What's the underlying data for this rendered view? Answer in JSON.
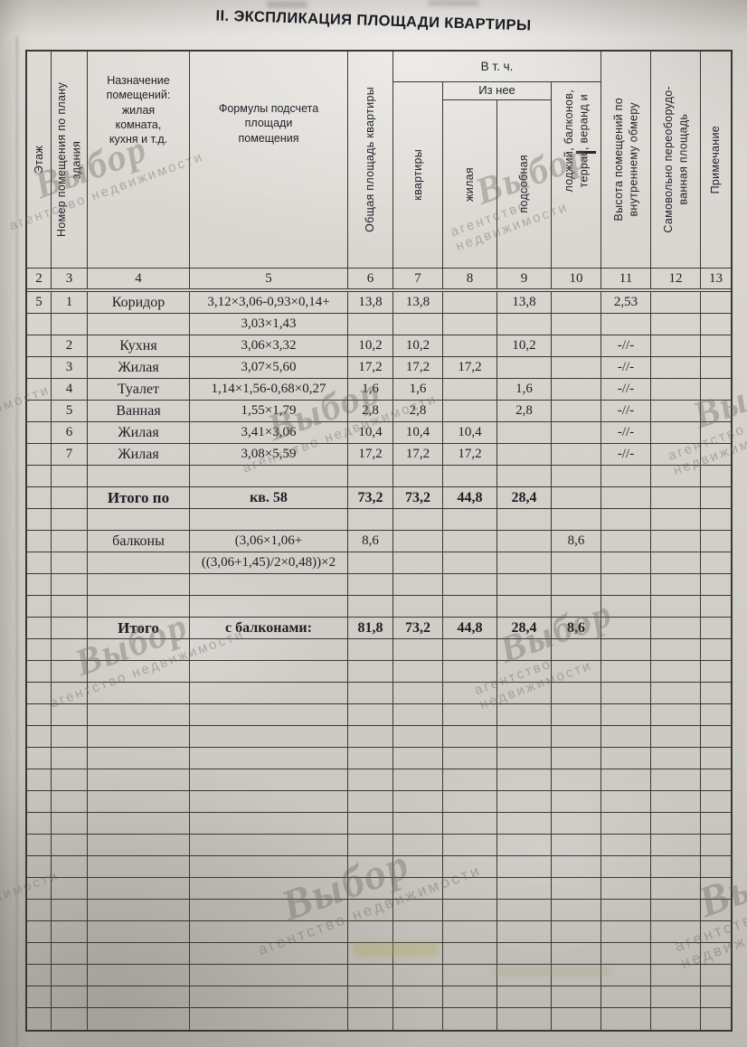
{
  "title": "II. ЭКСПЛИКАЦИЯ ПЛОЩАДИ КВАРТИРЫ",
  "watermark": {
    "brand": "Выбор",
    "agency": "агентство недвижимости"
  },
  "table": {
    "headers": {
      "floor": "Этаж",
      "room_number": "Номер помещения по плану\nздания",
      "purpose": "Назначение\nпомещений:\nжилая\nкомната,\nкухня и т.д.",
      "formulas": "Формулы подсчета\nплощади\nпомещения",
      "total_area": "Общая площадь квартиры",
      "including": "В т. ч.",
      "apartment": "квартиры",
      "of_it": "Из нее",
      "living": "жилая",
      "auxiliary": "подсобная",
      "balconies": "лоджий, балконов,\nтеррас, веранд и",
      "height": "Высота помещений по\nвнутреннему обмеру",
      "reequipped": "Самовольно переоборудо-\nванная площадь",
      "note": "Примечание"
    },
    "column_numbers": [
      "2",
      "3",
      "4",
      "5",
      "6",
      "7",
      "8",
      "9",
      "10",
      "11",
      "12",
      "13"
    ],
    "body": {
      "row_count": 34,
      "rows": [
        {
          "i": 0,
          "cells": [
            "5",
            "1",
            "Коридор",
            "3,12×3,06-0,93×0,14+",
            "13,8",
            "13,8",
            "",
            "13,8",
            "",
            "2,53",
            "",
            ""
          ]
        },
        {
          "i": 1,
          "cells": [
            "",
            "",
            "",
            "3,03×1,43",
            "",
            "",
            "",
            "",
            "",
            "",
            "",
            ""
          ]
        },
        {
          "i": 2,
          "cells": [
            "",
            "2",
            "Кухня",
            "3,06×3,32",
            "10,2",
            "10,2",
            "",
            "10,2",
            "",
            "-//-",
            "",
            ""
          ]
        },
        {
          "i": 3,
          "cells": [
            "",
            "3",
            "Жилая",
            "3,07×5,60",
            "17,2",
            "17,2",
            "17,2",
            "",
            "",
            "-//-",
            "",
            ""
          ]
        },
        {
          "i": 4,
          "cells": [
            "",
            "4",
            "Туалет",
            "1,14×1,56-0,68×0,27",
            "1,6",
            "1,6",
            "",
            "1,6",
            "",
            "-//-",
            "",
            ""
          ]
        },
        {
          "i": 5,
          "cells": [
            "",
            "5",
            "Ванная",
            "1,55×1,79",
            "2,8",
            "2,8",
            "",
            "2,8",
            "",
            "-//-",
            "",
            ""
          ]
        },
        {
          "i": 6,
          "cells": [
            "",
            "6",
            "Жилая",
            "3,41×3,06",
            "10,4",
            "10,4",
            "10,4",
            "",
            "",
            "-//-",
            "",
            ""
          ]
        },
        {
          "i": 7,
          "cells": [
            "",
            "7",
            "Жилая",
            "3,08×5,59",
            "17,2",
            "17,2",
            "17,2",
            "",
            "",
            "-//-",
            "",
            ""
          ]
        },
        {
          "i": 9,
          "bold": true,
          "cells": [
            "",
            "",
            "Итого по",
            "кв. 58",
            "73,2",
            "73,2",
            "44,8",
            "28,4",
            "",
            "",
            "",
            ""
          ]
        },
        {
          "i": 11,
          "cells": [
            "",
            "",
            "балконы",
            "(3,06×1,06+",
            "8,6",
            "",
            "",
            "",
            "8,6",
            "",
            "",
            ""
          ]
        },
        {
          "i": 12,
          "cells": [
            "",
            "",
            "",
            "((3,06+1,45)/2×0,48))×2",
            "",
            "",
            "",
            "",
            "",
            "",
            "",
            ""
          ]
        },
        {
          "i": 15,
          "bold": true,
          "cells": [
            "",
            "",
            "Итого",
            "с балконами:",
            "81,8",
            "73,2",
            "44,8",
            "28,4",
            "8,6",
            "",
            "",
            ""
          ]
        }
      ]
    }
  }
}
